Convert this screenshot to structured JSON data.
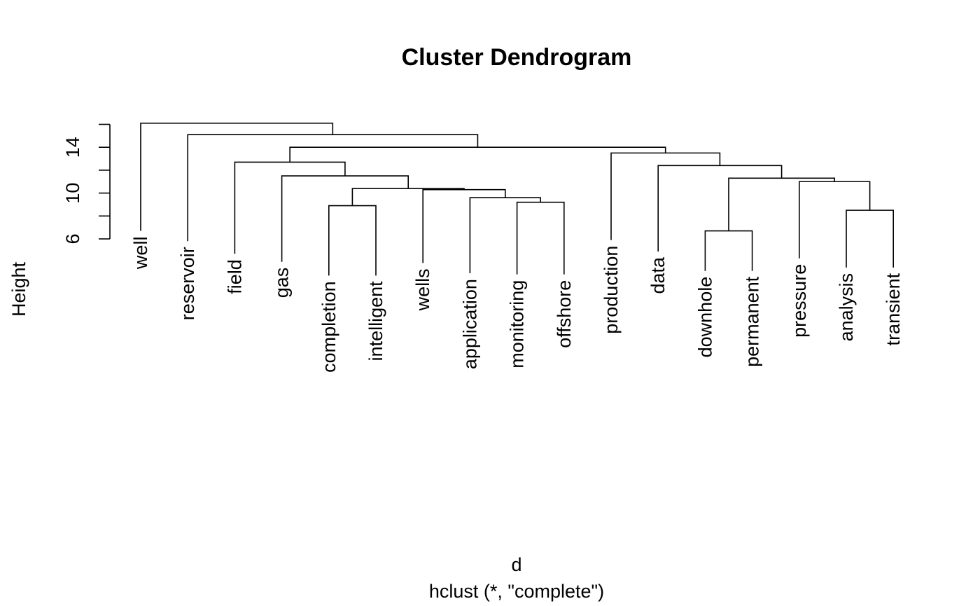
{
  "chart_data": {
    "type": "dendrogram",
    "title": "Cluster Dendrogram",
    "ylabel": "Height",
    "xlabel": "d",
    "subtitle": "hclust (*, \"complete\")",
    "y_ticks": [
      6,
      8,
      10,
      12,
      14,
      16
    ],
    "y_tick_labels": [
      "6",
      "",
      "10",
      "",
      "14",
      ""
    ],
    "ylim": [
      6,
      17
    ],
    "leaves": [
      {
        "name": "well",
        "leaf_top": 6.7
      },
      {
        "name": "reservoir",
        "leaf_top": 5.8
      },
      {
        "name": "field",
        "leaf_top": 4.7
      },
      {
        "name": "gas",
        "leaf_top": 4.0
      },
      {
        "name": "completion",
        "leaf_top": 2.8
      },
      {
        "name": "intelligent",
        "leaf_top": 2.8
      },
      {
        "name": "wells",
        "leaf_top": 3.9
      },
      {
        "name": "application",
        "leaf_top": 3.0
      },
      {
        "name": "monitoring",
        "leaf_top": 2.9
      },
      {
        "name": "offshore",
        "leaf_top": 2.9
      },
      {
        "name": "production",
        "leaf_top": 5.9
      },
      {
        "name": "data",
        "leaf_top": 4.9
      },
      {
        "name": "downhole",
        "leaf_top": 3.2
      },
      {
        "name": "permanent",
        "leaf_top": 3.2
      },
      {
        "name": "pressure",
        "leaf_top": 4.3
      },
      {
        "name": "analysis",
        "leaf_top": 3.5
      },
      {
        "name": "transient",
        "leaf_top": 3.5
      }
    ],
    "merges": [
      {
        "left": "L4",
        "right": "L5",
        "height": 8.9
      },
      {
        "left": "L8",
        "right": "L9",
        "height": 9.2
      },
      {
        "left": "L12",
        "right": "L13",
        "height": 6.7
      },
      {
        "left": "L15",
        "right": "L16",
        "height": 8.5
      },
      {
        "left": "L7",
        "right": "M2",
        "height": 9.6
      },
      {
        "left": "L14",
        "right": "M4",
        "height": 11.0
      },
      {
        "left": "L6",
        "right": "M5",
        "height": 10.3
      },
      {
        "left": "M1",
        "right": "M7",
        "height": 10.4
      },
      {
        "left": "M3",
        "right": "M6",
        "height": 11.3
      },
      {
        "left": "L3",
        "right": "M8",
        "height": 11.5
      },
      {
        "left": "L11",
        "right": "M9",
        "height": 12.4
      },
      {
        "left": "L2",
        "right": "M10",
        "height": 12.7
      },
      {
        "left": "L10",
        "right": "M11",
        "height": 13.5
      },
      {
        "left": "M12",
        "right": "M13",
        "height": 14.0
      },
      {
        "left": "L1",
        "right": "M14",
        "height": 15.1
      },
      {
        "left": "L0",
        "right": "M15",
        "height": 16.1
      }
    ]
  }
}
